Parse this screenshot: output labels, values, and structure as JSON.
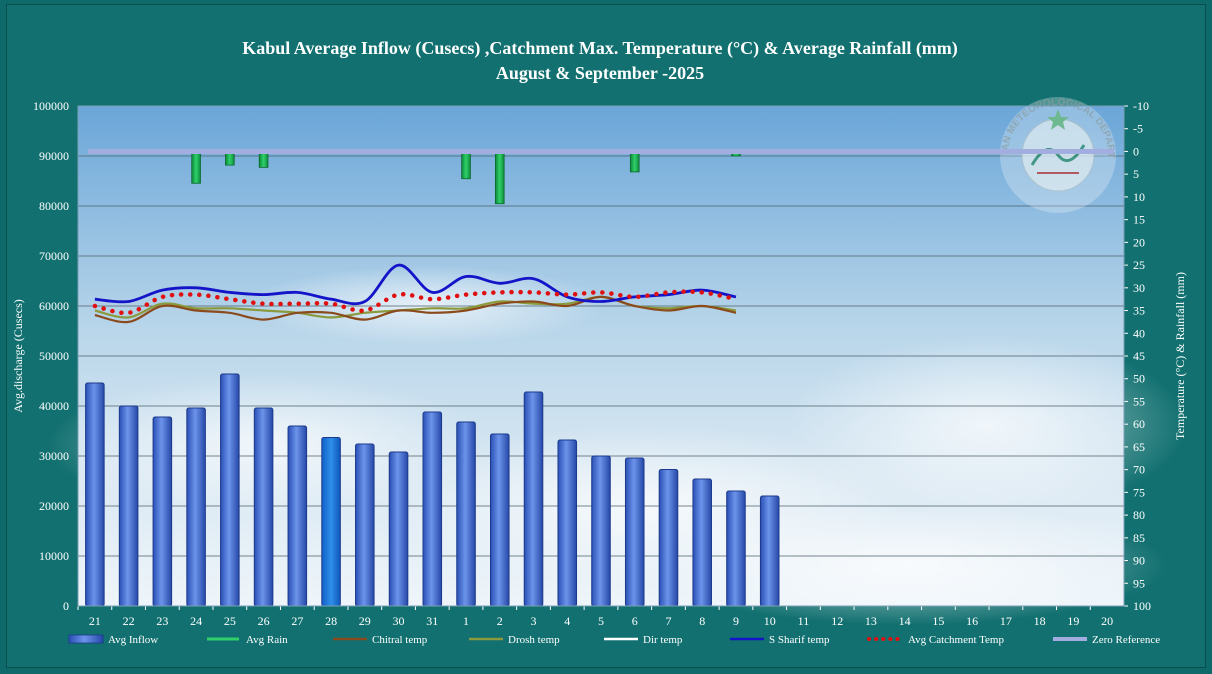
{
  "chart_data": {
    "type": "bar",
    "title_line1": "Kabul Average Inflow (Cusecs) ,Catchment Max. Temperature  (°C) & Average Rainfall (mm)",
    "title_line2": "August & September  -2025",
    "ylabel_left": "Avg.discharge (Cusecs)",
    "ylabel_right": "Temperature (°C) & Rainfall  (mm)",
    "ylim_left": [
      0,
      100000
    ],
    "yticks_left": [
      "0",
      "10000",
      "20000",
      "30000",
      "40000",
      "50000",
      "60000",
      "70000",
      "80000",
      "90000",
      "100000"
    ],
    "ylim_right": [
      -10,
      100
    ],
    "yticks_right": [
      "-10",
      "-5",
      "0",
      "5",
      "10",
      "15",
      "20",
      "25",
      "30",
      "35",
      "40",
      "45",
      "50",
      "55",
      "60",
      "65",
      "70",
      "75",
      "80",
      "85",
      "90",
      "95",
      "100"
    ],
    "right_axis_inverted": true,
    "grid": true,
    "legend_position": "bottom",
    "categories": [
      "21",
      "22",
      "23",
      "24",
      "25",
      "26",
      "27",
      "28",
      "29",
      "30",
      "31",
      "1",
      "2",
      "3",
      "4",
      "5",
      "6",
      "7",
      "8",
      "9",
      "10",
      "11",
      "12",
      "13",
      "14",
      "15",
      "16",
      "17",
      "18",
      "19",
      "20"
    ],
    "series": [
      {
        "name": "Avg Inflow",
        "type": "bar",
        "axis": "left",
        "color": "#3a63c9",
        "values": [
          44600,
          40000,
          37800,
          39600,
          46400,
          39600,
          36000,
          33700,
          32400,
          30800,
          38800,
          36800,
          34400,
          42800,
          33200,
          30000,
          29600,
          27300,
          25400,
          23000,
          22000,
          null,
          null,
          null,
          null,
          null,
          null,
          null,
          null,
          null,
          null
        ]
      },
      {
        "name": "Avg Rain",
        "type": "bar",
        "axis": "right",
        "color": "#14a84a",
        "values": [
          null,
          null,
          null,
          7,
          3,
          3.5,
          null,
          null,
          null,
          null,
          null,
          6,
          11.5,
          null,
          null,
          null,
          4.5,
          null,
          null,
          1,
          null,
          null,
          null,
          null,
          null,
          null,
          null,
          null,
          null,
          null,
          null
        ]
      },
      {
        "name": "Chitral temp",
        "type": "line",
        "axis": "right",
        "color": "#8b4a1c",
        "values": [
          36,
          37.5,
          34,
          35,
          35.5,
          37,
          35.5,
          35.5,
          37,
          35,
          35.5,
          35,
          33.5,
          33,
          34,
          32,
          34,
          35,
          34,
          35.5,
          null,
          null,
          null,
          null,
          null,
          null,
          null,
          null,
          null,
          null,
          null
        ]
      },
      {
        "name": "Drosh temp",
        "type": "line",
        "axis": "right",
        "color": "#8a9a3c",
        "values": [
          35,
          36.5,
          33.5,
          34.5,
          34.5,
          35,
          35.5,
          36.5,
          35.5,
          35,
          34.5,
          34.5,
          33,
          33.5,
          33.5,
          32,
          34,
          34.5,
          34,
          35,
          null,
          null,
          null,
          null,
          null,
          null,
          null,
          null,
          null,
          null,
          null
        ]
      },
      {
        "name": "Dir temp",
        "type": "line",
        "axis": "right",
        "color": "#ffffff",
        "values": [
          null,
          null,
          null,
          null,
          null,
          null,
          null,
          null,
          null,
          null,
          null,
          null,
          null,
          null,
          null,
          null,
          null,
          null,
          null,
          null,
          null,
          null,
          null,
          null,
          null,
          null,
          null,
          null,
          null,
          null,
          null
        ]
      },
      {
        "name": "S Sharif temp",
        "type": "line",
        "axis": "right",
        "color": "#1414c8",
        "values": [
          32.5,
          33,
          30.5,
          30,
          31,
          31.5,
          31,
          32.5,
          33,
          25,
          31,
          27.5,
          29,
          28,
          32,
          33,
          32,
          31.5,
          30.5,
          32,
          null,
          null,
          null,
          null,
          null,
          null,
          null,
          null,
          null,
          null,
          null
        ]
      },
      {
        "name": "Avg Catchment Temp",
        "type": "dotted-line",
        "axis": "right",
        "color": "#e01010",
        "values": [
          34,
          35.5,
          32,
          31.5,
          32.5,
          33.5,
          33.5,
          33.5,
          35,
          31.5,
          32.5,
          31.5,
          31,
          31,
          31.5,
          31,
          32,
          31,
          31,
          32.5,
          null,
          null,
          null,
          null,
          null,
          null,
          null,
          null,
          null,
          null,
          null
        ]
      },
      {
        "name": "Zero Reference",
        "type": "line",
        "axis": "right",
        "color": "#a3aee0",
        "values": [
          0,
          0,
          0,
          0,
          0,
          0,
          0,
          0,
          0,
          0,
          0,
          0,
          0,
          0,
          0,
          0,
          0,
          0,
          0,
          0,
          0,
          0,
          0,
          0,
          0,
          0,
          0,
          0,
          0,
          0,
          0
        ]
      }
    ],
    "watermark": "PAKISTAN METEOROLOGICAL DEPARTMENT"
  }
}
